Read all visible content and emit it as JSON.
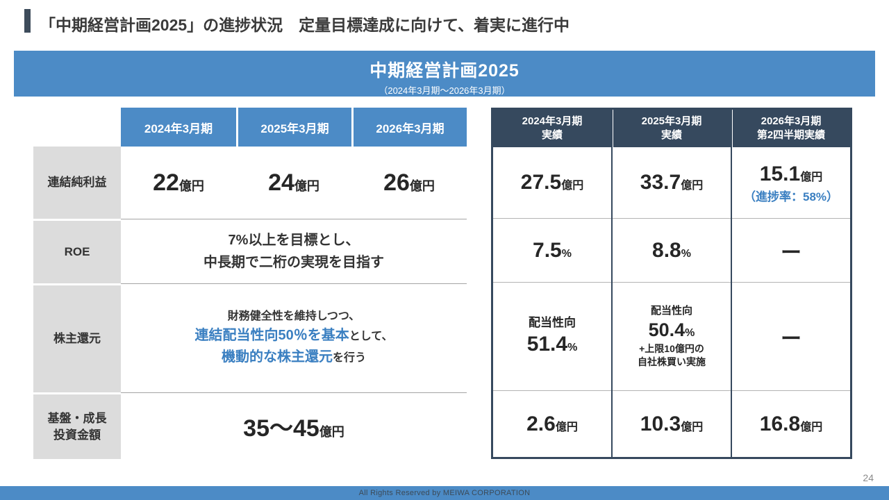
{
  "page": {
    "title": "「中期経営計画2025」の進捗状況　定量目標達成に向けて、着実に進行中",
    "page_number": "24",
    "copyright": "All Rights Reserved by MEIWA CORPORATION"
  },
  "banner": {
    "title": "中期経営計画2025",
    "subtitle": "（2024年3月期～2026年3月期）"
  },
  "plan_table": {
    "col_headers": [
      "2024年3月期",
      "2025年3月期",
      "2026年3月期"
    ],
    "rows": {
      "net_income": {
        "label": "連結純利益",
        "values": [
          {
            "num": "22",
            "unit": "億円"
          },
          {
            "num": "24",
            "unit": "億円"
          },
          {
            "num": "26",
            "unit": "億円"
          }
        ]
      },
      "roe": {
        "label": "ROE",
        "line1": "7%以上を目標とし、",
        "line2": "中長期で二桁の実現を目指す"
      },
      "shareholder_return": {
        "label": "株主還元",
        "line1": "財務健全性を維持しつつ、",
        "line2_highlight": "連結配当性向50％を基本",
        "line2_rest": "として、",
        "line3_highlight": "機動的な株主還元",
        "line3_rest": "を行う"
      },
      "investment": {
        "label_line1": "基盤・成長",
        "label_line2": "投資金額",
        "value": "35～45",
        "unit": "億円"
      }
    }
  },
  "results_table": {
    "col_headers": [
      {
        "line1": "2024年3月期",
        "line2": "実績"
      },
      {
        "line1": "2025年3月期",
        "line2": "実績"
      },
      {
        "line1": "2026年3月期",
        "line2": "第2四半期実績"
      }
    ],
    "rows": {
      "net_income": [
        {
          "num": "27.5",
          "unit": "億円"
        },
        {
          "num": "33.7",
          "unit": "億円"
        },
        {
          "num": "15.1",
          "unit": "億円",
          "note": "（進捗率：58%）"
        }
      ],
      "roe": [
        {
          "num": "7.5",
          "unit": "%"
        },
        {
          "num": "8.8",
          "unit": "%"
        },
        {
          "dash": "ー"
        }
      ],
      "shareholder_return": [
        {
          "pre": "配当性向",
          "num": "51.4",
          "unit": "%"
        },
        {
          "pre": "配当性向",
          "num": "50.4",
          "unit": "%",
          "note_line1": "+上限10億円の",
          "note_line2": "自社株買い実施"
        },
        {
          "dash": "ー"
        }
      ],
      "investment": [
        {
          "num": "2.6",
          "unit": "億円"
        },
        {
          "num": "10.3",
          "unit": "億円"
        },
        {
          "num": "16.8",
          "unit": "億円"
        }
      ]
    }
  },
  "colors": {
    "banner_blue": "#4c8bc6",
    "header_navy": "#36495e",
    "row_label_gray": "#dcdcdc",
    "accent_blue": "#3a7fc1",
    "title_bar": "#3e4c5b"
  }
}
